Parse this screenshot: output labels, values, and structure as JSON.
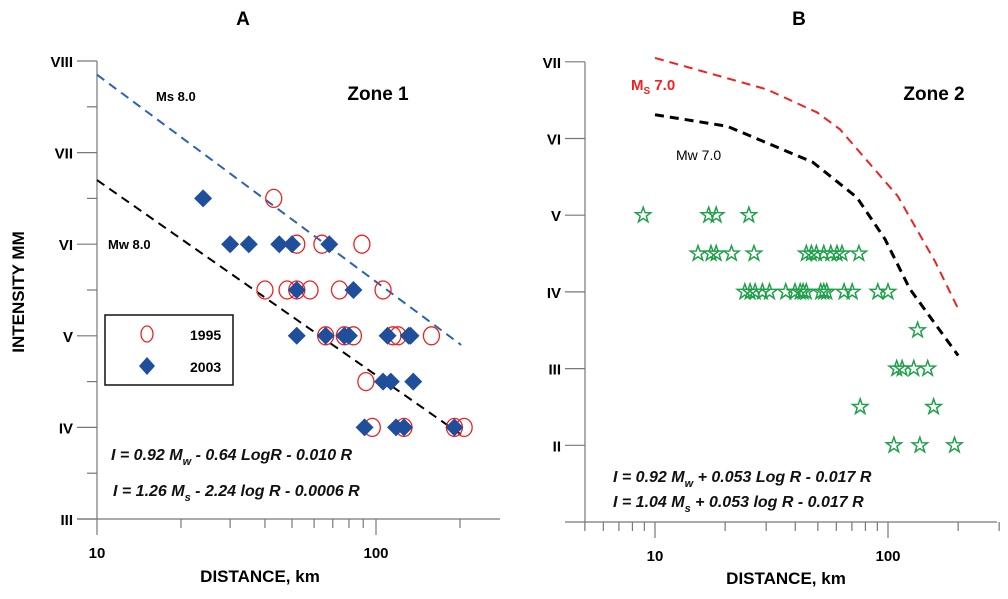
{
  "y_axis_label": "INTENSITY MM",
  "chart_data": [
    {
      "type": "scatter",
      "panel_label": "A",
      "zone_label": "Zone 1",
      "xlabel": "DISTANCE, km",
      "ylabel": "INTENSITY MM",
      "x_scale": "log",
      "xlim": [
        10,
        280
      ],
      "ylim": [
        3,
        8
      ],
      "x_tick_labels": [
        {
          "value": 10,
          "label": "10"
        },
        {
          "value": 100,
          "label": "100"
        }
      ],
      "y_tick_labels": [
        {
          "value": 8,
          "label": "VIII"
        },
        {
          "value": 7,
          "label": "VII"
        },
        {
          "value": 6,
          "label": "VI"
        },
        {
          "value": 5,
          "label": "V"
        },
        {
          "value": 4,
          "label": "IV"
        },
        {
          "value": 3,
          "label": "III"
        }
      ],
      "grid": false,
      "legend": {
        "placement": "left",
        "entries": [
          "1995",
          "2003"
        ]
      },
      "series": [
        {
          "name": "1995",
          "marker": "open-circle",
          "color": "#ee2222",
          "x": [
            43,
            52,
            64,
            89,
            40,
            48,
            52,
            58,
            74,
            106,
            66,
            77,
            83,
            115,
            120,
            158,
            92,
            97,
            126,
            191,
            207
          ],
          "y": [
            6.5,
            6,
            6,
            6,
            5.5,
            5.5,
            5.5,
            5.5,
            5.5,
            5.5,
            5,
            5,
            5,
            5,
            5,
            5,
            4.5,
            4,
            4,
            4,
            4
          ]
        },
        {
          "name": "2003",
          "marker": "filled-diamond",
          "color": "#1f4e9a",
          "x": [
            24,
            30,
            35,
            45,
            50,
            68,
            52,
            83,
            52,
            66,
            77,
            80,
            110,
            131,
            133,
            106,
            113,
            136,
            91,
            118,
            126,
            191
          ],
          "y": [
            6.5,
            6,
            6,
            6,
            6,
            6,
            5.5,
            5.5,
            5,
            5,
            5,
            5,
            5,
            5,
            5,
            4.5,
            4.5,
            4.5,
            4,
            4,
            4,
            4
          ]
        }
      ],
      "lines": [
        {
          "label": "Ms 8.0",
          "color": "#2a62b8",
          "style": "dashed",
          "x": [
            10,
            202
          ],
          "y": [
            7.85,
            4.9
          ]
        },
        {
          "label": "Mw 8.0",
          "color": "#000000",
          "style": "dashed",
          "x": [
            10,
            202
          ],
          "y": [
            6.7,
            3.92
          ]
        }
      ],
      "equations": [
        {
          "pre": "I = 0.92 M",
          "sub": "w",
          "post": " - 0.64 LogR - 0.010 R"
        },
        {
          "pre": "I = 1.26 M",
          "sub": "s",
          "post": " - 2.24 log R  - 0.0006 R"
        }
      ]
    },
    {
      "type": "scatter",
      "panel_label": "B",
      "zone_label": "Zone 2",
      "xlabel": "DISTANCE, km",
      "x_scale": "log",
      "xlim": [
        5,
        300
      ],
      "ylim": [
        1,
        7
      ],
      "x_tick_labels": [
        {
          "value": 10,
          "label": "10"
        },
        {
          "value": 100,
          "label": "100"
        }
      ],
      "y_tick_labels": [
        {
          "value": 7,
          "label": "VII"
        },
        {
          "value": 6,
          "label": "VI"
        },
        {
          "value": 5,
          "label": "V"
        },
        {
          "value": 4,
          "label": "IV"
        },
        {
          "value": 3,
          "label": "III"
        },
        {
          "value": 2,
          "label": "II"
        }
      ],
      "grid": false,
      "series": [
        {
          "marker": "open-star",
          "color": "#1fa04a",
          "x": [
            8.9,
            17,
            18.3,
            25.3,
            15.3,
            17.4,
            18.3,
            21.3,
            26.6,
            44.6,
            46.9,
            49.3,
            53,
            56.8,
            60.4,
            63.5,
            75,
            24.3,
            25.6,
            26.9,
            28.9,
            31,
            36.4,
            39.9,
            42,
            43.2,
            44.6,
            51.4,
            53,
            54.6,
            64.8,
            70.2,
            90.4,
            100,
            134,
            109,
            115,
            129,
            148,
            76,
            157,
            106,
            137,
            193
          ],
          "y": [
            5,
            5,
            5,
            5,
            4.5,
            4.5,
            4.5,
            4.5,
            4.5,
            4.5,
            4.5,
            4.5,
            4.5,
            4.5,
            4.5,
            4.5,
            4.5,
            4,
            4,
            4,
            4,
            4,
            4,
            4,
            4,
            4,
            4,
            4,
            4,
            4,
            4,
            4,
            4,
            4,
            3.5,
            3,
            3,
            3,
            3,
            2.5,
            2.5,
            2,
            2,
            2
          ]
        }
      ],
      "lines": [
        {
          "label_main": "M",
          "label_sub": "S",
          "label_rest": " 7.0",
          "color": "#ee2222",
          "style": "dashed",
          "x": [
            10,
            16.7,
            30.2,
            49.6,
            62.2,
            110,
            159,
            200
          ],
          "y": [
            7.05,
            6.86,
            6.64,
            6.34,
            6.12,
            5.25,
            4.4,
            3.78
          ]
        },
        {
          "label": "Mw 7.0",
          "color": "#000000",
          "style": "dashed",
          "x": [
            10,
            20.4,
            47.6,
            73.6,
            97,
            124,
            200
          ],
          "y": [
            6.31,
            6.16,
            5.69,
            5.23,
            4.69,
            4.04,
            3.17
          ]
        }
      ],
      "equations": [
        {
          "pre": "I = 0.92 M",
          "sub": "w",
          "post": " + 0.053 Log R - 0.017 R"
        },
        {
          "pre": "I = 1.04 M",
          "sub": "s",
          "post": " + 0.053 log R  - 0.017 R"
        }
      ]
    }
  ]
}
